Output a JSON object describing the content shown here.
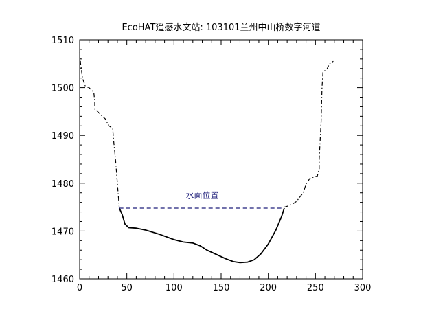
{
  "chart_data": {
    "type": "line",
    "title": "EcoHAT遥感水文站: 103101兰州中山桥数字河道",
    "xlabel": "",
    "ylabel": "",
    "xlim": [
      0,
      300
    ],
    "ylim": [
      1460,
      1510
    ],
    "x_ticks": [
      0,
      50,
      100,
      150,
      200,
      250,
      300
    ],
    "y_ticks": [
      1460,
      1470,
      1480,
      1490,
      1500,
      1510
    ],
    "x_tick_labels": [
      "0",
      "50",
      "100",
      "150",
      "200",
      "250",
      "300"
    ],
    "y_tick_labels": [
      "1460",
      "1470",
      "1480",
      "1490",
      "1500",
      "1510"
    ],
    "grid": false,
    "annotations": [
      {
        "text": "水面位置",
        "x": 130,
        "y": 1476.3
      }
    ],
    "series": [
      {
        "style": "dash-dot",
        "color": "#000000",
        "x": [
          0,
          1,
          3,
          6,
          10,
          15,
          16,
          16,
          19,
          24,
          27,
          31,
          35,
          36,
          38,
          40,
          42
        ],
        "y": [
          1507.5,
          1505,
          1502,
          1500.3,
          1500,
          1499,
          1497,
          1495.5,
          1495,
          1494,
          1493.5,
          1492,
          1491.5,
          1489,
          1485,
          1480,
          1474.8
        ]
      },
      {
        "style": "solid",
        "color": "#000000",
        "x": [
          42,
          45,
          48,
          52,
          60,
          70,
          85,
          100,
          110,
          120,
          128,
          135,
          145,
          155,
          163,
          170,
          178,
          185,
          192,
          200,
          208,
          214,
          217
        ],
        "y": [
          1474.8,
          1473.5,
          1471.5,
          1470.7,
          1470.6,
          1470.2,
          1469.3,
          1468.2,
          1467.7,
          1467.5,
          1466.9,
          1466,
          1465.1,
          1464.2,
          1463.6,
          1463.4,
          1463.5,
          1464,
          1465.2,
          1467.3,
          1470.2,
          1473,
          1474.8
        ]
      },
      {
        "style": "dash-dot",
        "color": "#000000",
        "x": [
          217,
          222,
          227,
          230,
          233,
          237,
          240,
          244,
          248,
          252,
          254,
          254,
          256,
          257,
          258,
          262,
          265,
          269
        ],
        "y": [
          1475,
          1475.3,
          1475.8,
          1476.2,
          1477,
          1478,
          1479.8,
          1481,
          1481.3,
          1481.5,
          1483,
          1485,
          1493,
          1500,
          1503.3,
          1503.8,
          1505,
          1505.5
        ]
      },
      {
        "style": "dashed",
        "color": "#1f1f7a",
        "x": [
          42,
          217
        ],
        "y": [
          1474.8,
          1474.8
        ]
      }
    ]
  }
}
